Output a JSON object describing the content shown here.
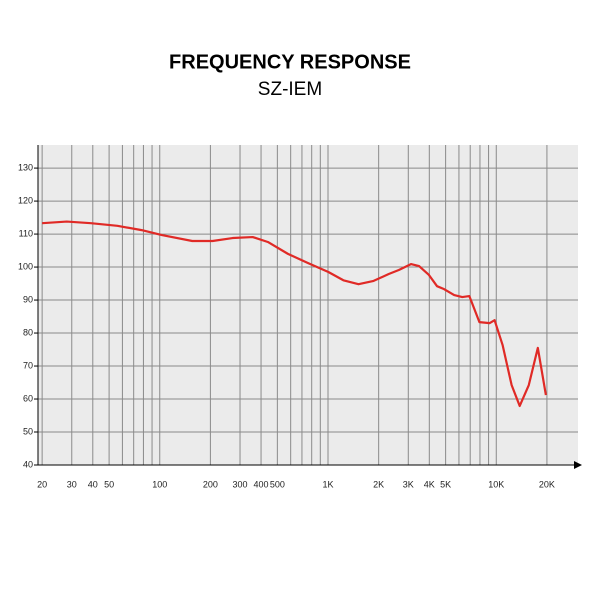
{
  "chart_data": {
    "type": "line",
    "title": "FREQUENCY RESPONSE",
    "subtitle": "SZ-IEM",
    "xscale": "log",
    "grid": true,
    "x": [
      20,
      28,
      39,
      56,
      78,
      103,
      156,
      206,
      271,
      357,
      439,
      578,
      762,
      1005,
      1234,
      1518,
      1866,
      2296,
      2636,
      3112,
      3476,
      3980,
      4446,
      4900,
      5620,
      6280,
      6920,
      7940,
      9120,
      9772,
      10900,
      12340,
      13780,
      15600,
      17660,
      19720
    ],
    "series": [
      {
        "name": "SZ-IEM",
        "color": "#e02a26",
        "values": [
          113.3,
          113.8,
          113.3,
          112.5,
          111.2,
          109.7,
          107.9,
          107.9,
          108.8,
          109.1,
          107.6,
          104,
          101.2,
          98.5,
          96,
          94.8,
          95.8,
          97.9,
          99.1,
          100.9,
          100.3,
          97.6,
          94.2,
          93.3,
          91.5,
          90.9,
          91.2,
          83.3,
          83,
          83.9,
          76.4,
          64.2,
          57.9,
          64.2,
          75.5,
          61.2
        ]
      }
    ],
    "xlim": [
      18.9,
      30600
    ],
    "ylim": [
      40,
      137
    ],
    "xticks": [
      20,
      30,
      40,
      50,
      100,
      200,
      300,
      400,
      500,
      {
        "value": 1000,
        "label": "1K"
      },
      {
        "value": 2000,
        "label": "2K"
      },
      {
        "value": 3000,
        "label": "3K"
      },
      {
        "value": 4000,
        "label": "4K"
      },
      {
        "value": 5000,
        "label": "5K"
      },
      {
        "value": 10000,
        "label": "10K"
      },
      {
        "value": 20000,
        "label": "20K"
      }
    ],
    "xminor_ticks": [
      60,
      70,
      80,
      90,
      600,
      700,
      800,
      900,
      6000,
      7000,
      8000,
      9000
    ],
    "yticks": [
      40,
      50,
      60,
      70,
      80,
      90,
      100,
      110,
      120,
      130
    ]
  }
}
